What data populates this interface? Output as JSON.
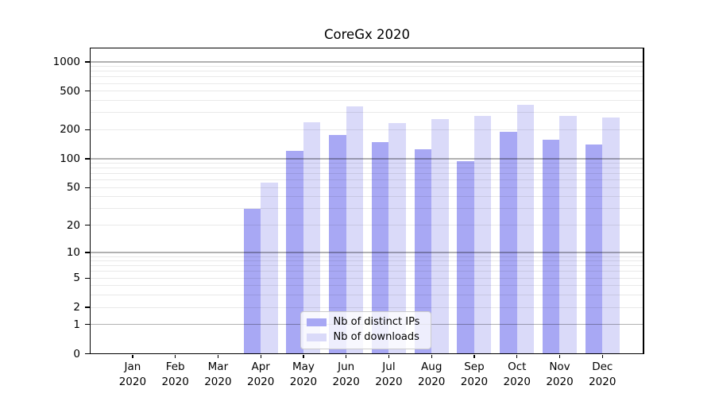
{
  "title": "CoreGx 2020",
  "chart_data": {
    "type": "bar",
    "title": "CoreGx 2020",
    "categories": [
      "Jan 2020",
      "Feb 2020",
      "Mar 2020",
      "Apr 2020",
      "May 2020",
      "Jun 2020",
      "Jul 2020",
      "Aug 2020",
      "Sep 2020",
      "Oct 2020",
      "Nov 2020",
      "Dec 2020"
    ],
    "series": [
      {
        "name": "Nb of distinct IPs",
        "color": "#a8a8f4",
        "values": [
          0,
          0,
          0,
          30,
          120,
          175,
          148,
          125,
          95,
          191,
          157,
          140
        ]
      },
      {
        "name": "Nb of downloads",
        "color": "#dadaf9",
        "values": [
          0,
          0,
          0,
          56,
          237,
          350,
          236,
          258,
          278,
          360,
          276,
          267
        ]
      }
    ],
    "xlabel": "",
    "ylabel": "",
    "yscale": "log1p",
    "ylim": [
      0,
      1390
    ],
    "yticks": [
      0,
      1,
      2,
      5,
      10,
      20,
      50,
      100,
      200,
      500,
      1000
    ],
    "grid": {
      "major_at": [
        1,
        10,
        100,
        1000
      ],
      "minor": "2-9 per decade",
      "axisbelow": false
    },
    "legend_position": "lower center"
  },
  "legend": {
    "items": [
      {
        "label": "Nb of distinct IPs",
        "color": "#a8a8f4"
      },
      {
        "label": "Nb of downloads",
        "color": "#dadaf9"
      }
    ]
  }
}
